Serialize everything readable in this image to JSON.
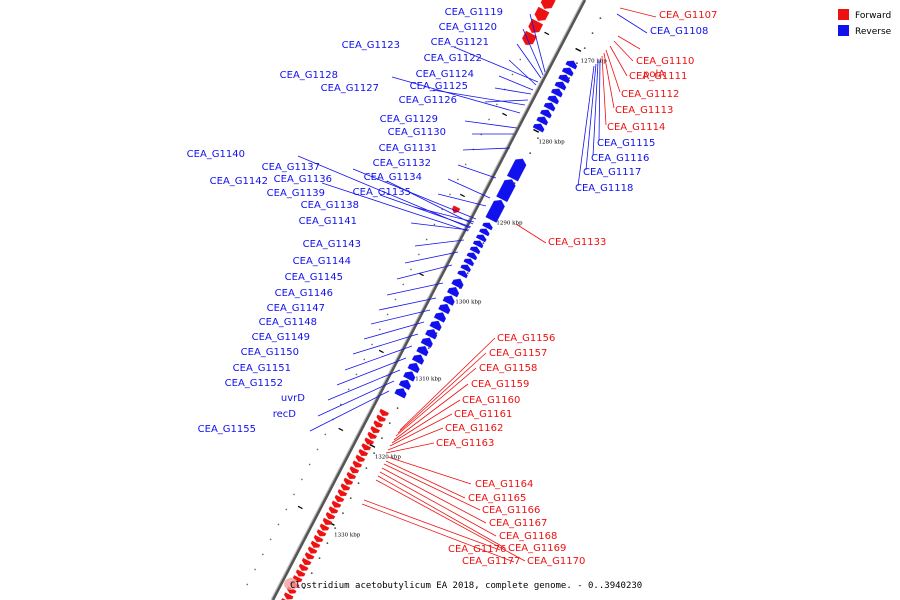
{
  "colors": {
    "forward": "#ee1111",
    "reverse": "#1111ee",
    "backbone_dark": "#555555",
    "backbone_light": "#bbbbbb"
  },
  "legend": {
    "forward": "Forward",
    "reverse": "Reverse"
  },
  "caption": "Clostridium acetobutylicum EA 2018, complete genome. - 0..3940230",
  "scale_ticks": [
    "1270 kbp",
    "1280 kbp",
    "1290 kbp",
    "1300 kbp",
    "1310 kbp",
    "1320 kbp",
    "1330 kbp"
  ],
  "reverse_genes": [
    {
      "id": "CEA_G1119"
    },
    {
      "id": "CEA_G1120"
    },
    {
      "id": "CEA_G1121"
    },
    {
      "id": "CEA_G1123"
    },
    {
      "id": "CEA_G1122"
    },
    {
      "id": "CEA_G1128"
    },
    {
      "id": "CEA_G1124"
    },
    {
      "id": "CEA_G1127"
    },
    {
      "id": "CEA_G1125"
    },
    {
      "id": "CEA_G1126"
    },
    {
      "id": "CEA_G1129"
    },
    {
      "id": "CEA_G1130"
    },
    {
      "id": "CEA_G1131"
    },
    {
      "id": "CEA_G1140"
    },
    {
      "id": "CEA_G1132"
    },
    {
      "id": "CEA_G1137"
    },
    {
      "id": "CEA_G1134"
    },
    {
      "id": "CEA_G1142"
    },
    {
      "id": "CEA_G1136"
    },
    {
      "id": "CEA_G1139"
    },
    {
      "id": "CEA_G1135"
    },
    {
      "id": "CEA_G1138"
    },
    {
      "id": "CEA_G1141"
    },
    {
      "id": "CEA_G1143"
    },
    {
      "id": "CEA_G1144"
    },
    {
      "id": "CEA_G1145"
    },
    {
      "id": "CEA_G1146"
    },
    {
      "id": "CEA_G1147"
    },
    {
      "id": "CEA_G1148"
    },
    {
      "id": "CEA_G1149"
    },
    {
      "id": "CEA_G1150"
    },
    {
      "id": "CEA_G1151"
    },
    {
      "id": "CEA_G1152"
    },
    {
      "id": "uvrD"
    },
    {
      "id": "recD"
    },
    {
      "id": "CEA_G1155"
    },
    {
      "id": "CEA_G1108"
    },
    {
      "id": "CEA_G1115"
    },
    {
      "id": "CEA_G1116"
    },
    {
      "id": "CEA_G1117"
    },
    {
      "id": "CEA_G1118"
    }
  ],
  "forward_genes": [
    {
      "id": "CEA_G1107"
    },
    {
      "id": "polA"
    },
    {
      "id": "CEA_G1110"
    },
    {
      "id": "CEA_G1111"
    },
    {
      "id": "CEA_G1112"
    },
    {
      "id": "CEA_G1113"
    },
    {
      "id": "CEA_G1114"
    },
    {
      "id": "CEA_G1133"
    },
    {
      "id": "CEA_G1156"
    },
    {
      "id": "CEA_G1157"
    },
    {
      "id": "CEA_G1158"
    },
    {
      "id": "CEA_G1159"
    },
    {
      "id": "CEA_G1160"
    },
    {
      "id": "CEA_G1161"
    },
    {
      "id": "CEA_G1162"
    },
    {
      "id": "CEA_G1163"
    },
    {
      "id": "CEA_G1164"
    },
    {
      "id": "CEA_G1165"
    },
    {
      "id": "CEA_G1166"
    },
    {
      "id": "CEA_G1167"
    },
    {
      "id": "CEA_G1168"
    },
    {
      "id": "CEA_G1169"
    },
    {
      "id": "CEA_G1176"
    },
    {
      "id": "CEA_G1177"
    },
    {
      "id": "CEA_G1170"
    }
  ]
}
